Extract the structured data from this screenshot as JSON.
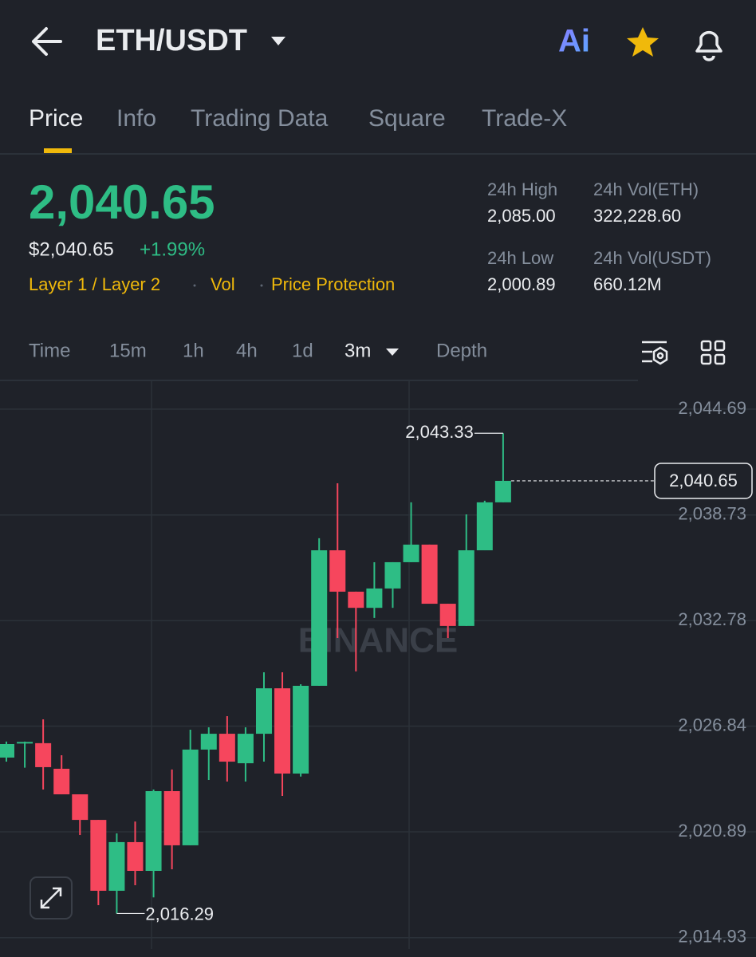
{
  "header": {
    "pair": "ETH/USDT",
    "ai_label": "Ai"
  },
  "tabs": [
    "Price",
    "Info",
    "Trading Data",
    "Square",
    "Trade-X"
  ],
  "price": {
    "last": "2,040.65",
    "usd": "$2,040.65",
    "change": "+1.99%"
  },
  "tags": [
    "Layer 1 / Layer 2",
    "Vol",
    "Price Protection"
  ],
  "stats": [
    {
      "label": "24h High",
      "value": "2,085.00"
    },
    {
      "label": "24h Vol(ETH)",
      "value": "322,228.60"
    },
    {
      "label": "24h Low",
      "value": "2,000.89"
    },
    {
      "label": "24h Vol(USDT)",
      "value": "660.12M"
    }
  ],
  "intervals": [
    "Time",
    "15m",
    "1h",
    "4h",
    "1d",
    "3m",
    "Depth"
  ],
  "chart_data": {
    "type": "candlestick",
    "watermark": "BINANCE",
    "up_color": "#2ebd85",
    "down_color": "#f6465d",
    "open": [
      2025.07,
      2025.9,
      2025.88,
      2024.44,
      2023.0,
      2021.56,
      2017.57,
      2020.31,
      2018.69,
      2023.18,
      2020.13,
      2025.52,
      2026.41,
      2024.75,
      2026.41,
      2028.97,
      2024.17,
      2029.11,
      2036.74,
      2034.41,
      2033.5,
      2034.59,
      2036.07,
      2037.06,
      2033.73,
      2032.48,
      2036.74,
      2039.44
    ],
    "high": [
      2025.97,
      2025.97,
      2027.22,
      2025.2,
      2023.0,
      2021.56,
      2020.8,
      2021.47,
      2023.27,
      2024.4,
      2026.64,
      2026.77,
      2027.4,
      2026.77,
      2029.87,
      2029.87,
      2029.2,
      2037.42,
      2040.51,
      2034.41,
      2036.07,
      2036.07,
      2039.44,
      2037.06,
      2033.73,
      2038.76,
      2039.53,
      2043.33
    ],
    "low": [
      2024.84,
      2024.5,
      2023.27,
      2023.0,
      2020.71,
      2016.76,
      2016.29,
      2017.88,
      2017.2,
      2018.78,
      2020.13,
      2023.81,
      2023.72,
      2023.72,
      2024.84,
      2022.91,
      2024.0,
      2029.11,
      2031.8,
      2029.92,
      2032.93,
      2033.5,
      2036.07,
      2033.73,
      2031.8,
      2032.48,
      2036.74,
      2039.44
    ],
    "close": [
      2025.83,
      2025.95,
      2024.53,
      2023.0,
      2021.56,
      2017.57,
      2020.31,
      2018.69,
      2023.18,
      2020.13,
      2025.52,
      2026.41,
      2024.84,
      2026.41,
      2028.97,
      2024.17,
      2029.11,
      2036.74,
      2034.41,
      2033.5,
      2034.59,
      2036.07,
      2037.06,
      2033.73,
      2032.48,
      2036.74,
      2039.44,
      2040.65
    ],
    "ylim": [
      2014.29,
      2046.26
    ],
    "yticks": [
      {
        "value": 2044.69,
        "label": "2,044.69"
      },
      {
        "value": 2038.73,
        "label": "2,038.73"
      },
      {
        "value": 2032.78,
        "label": "2,032.78"
      },
      {
        "value": 2026.84,
        "label": "2,026.84"
      },
      {
        "value": 2020.89,
        "label": "2,020.89"
      },
      {
        "value": 2014.93,
        "label": "2,014.93"
      }
    ],
    "grid": true,
    "annotations": [
      {
        "value": 2043.33,
        "label": "2,043.33"
      },
      {
        "value": 2016.29,
        "label": "2,016.29"
      }
    ],
    "last_price": {
      "value": 2040.65,
      "label": "2,040.65"
    }
  }
}
